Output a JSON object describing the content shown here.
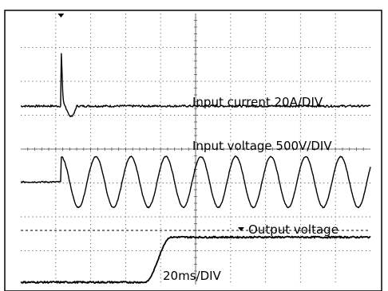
{
  "chart_data": {
    "type": "line",
    "title": "",
    "xlabel": "",
    "ylabel": "",
    "grid": true,
    "time_scale_label": "20ms/DIV",
    "x_divisions": 10,
    "y_divisions": 8,
    "time_per_div_ms": 20,
    "xlim_div": [
      0,
      10
    ],
    "ylim_div": [
      0,
      8
    ],
    "trigger_div": 1.15,
    "series": [
      {
        "key": "input_current",
        "name": "Input current 20A/DIV",
        "baseline_div": 5.27,
        "inrush_spike_div": 1.55,
        "inrush_dip_div": -0.3
      },
      {
        "key": "input_voltage",
        "name": "Input voltage 500V/DIV",
        "offset_div": 3.03,
        "amplitude_div": 0.75,
        "frequency_hz": 50,
        "cycles_visible": 9.5
      },
      {
        "key": "output_voltage",
        "name": "Output voltage",
        "low_div": 0.07,
        "high_div": 1.4,
        "rise_start_div": 3.55,
        "rise_end_div": 4.3,
        "reference_div": 1.6
      }
    ]
  }
}
